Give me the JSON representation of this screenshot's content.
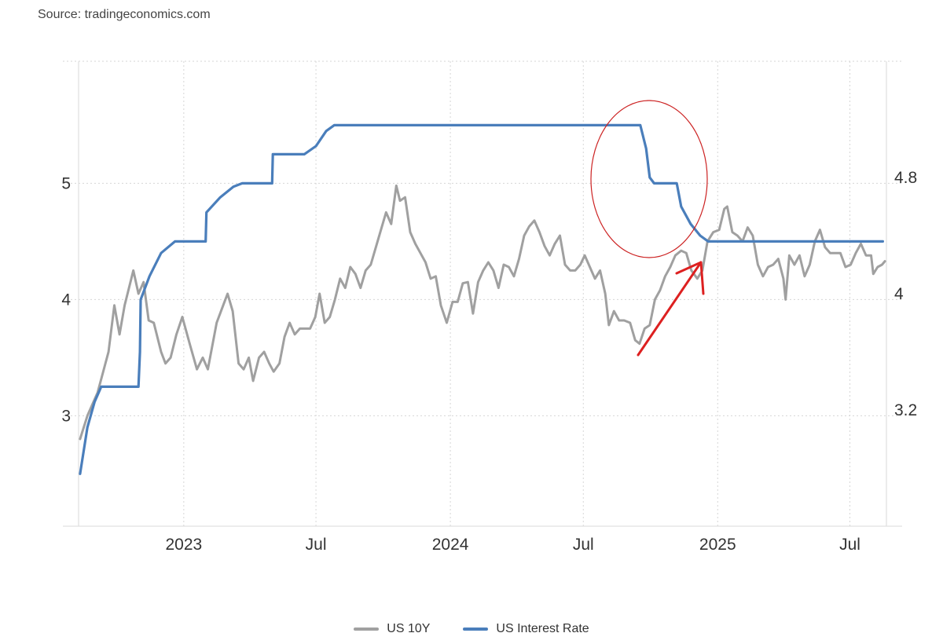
{
  "source": "Source: tradingeconomics.com",
  "chart_data": {
    "type": "line",
    "title": "",
    "x_range": [
      "2022-08-10",
      "2025-08-20"
    ],
    "x_ticks": [
      {
        "date": "2023-01-01",
        "label": "2023"
      },
      {
        "date": "2023-07-01",
        "label": "Jul"
      },
      {
        "date": "2024-01-01",
        "label": "2024"
      },
      {
        "date": "2024-07-01",
        "label": "Jul"
      },
      {
        "date": "2025-01-01",
        "label": "2025"
      },
      {
        "date": "2025-07-01",
        "label": "Jul"
      }
    ],
    "y_left": {
      "range": [
        2.05,
        6.05
      ],
      "ticks": [
        3,
        4,
        5
      ],
      "labels": [
        "3",
        "4",
        "5"
      ]
    },
    "y_right": {
      "range": [
        2.4,
        5.6
      ],
      "ticks": [
        3.2,
        4.0,
        4.8
      ],
      "labels": [
        "3.2",
        "4",
        "4.8"
      ]
    },
    "grid": true,
    "legend_position": "bottom",
    "series": [
      {
        "name": "US 10Y",
        "axis": "left",
        "color": "#a0a0a0",
        "points": [
          [
            "2022-08-12",
            2.8
          ],
          [
            "2022-08-22",
            3.0
          ],
          [
            "2022-09-05",
            3.2
          ],
          [
            "2022-09-20",
            3.55
          ],
          [
            "2022-09-28",
            3.95
          ],
          [
            "2022-10-05",
            3.7
          ],
          [
            "2022-10-12",
            3.95
          ],
          [
            "2022-10-24",
            4.25
          ],
          [
            "2022-10-31",
            4.05
          ],
          [
            "2022-11-07",
            4.15
          ],
          [
            "2022-11-14",
            3.82
          ],
          [
            "2022-11-21",
            3.8
          ],
          [
            "2022-12-01",
            3.55
          ],
          [
            "2022-12-07",
            3.45
          ],
          [
            "2022-12-14",
            3.5
          ],
          [
            "2022-12-22",
            3.7
          ],
          [
            "2022-12-30",
            3.85
          ],
          [
            "2023-01-10",
            3.6
          ],
          [
            "2023-01-19",
            3.4
          ],
          [
            "2023-01-27",
            3.5
          ],
          [
            "2023-02-03",
            3.4
          ],
          [
            "2023-02-15",
            3.8
          ],
          [
            "2023-02-24",
            3.95
          ],
          [
            "2023-03-02",
            4.05
          ],
          [
            "2023-03-09",
            3.9
          ],
          [
            "2023-03-17",
            3.45
          ],
          [
            "2023-03-24",
            3.4
          ],
          [
            "2023-03-31",
            3.5
          ],
          [
            "2023-04-06",
            3.3
          ],
          [
            "2023-04-14",
            3.5
          ],
          [
            "2023-04-21",
            3.55
          ],
          [
            "2023-04-28",
            3.45
          ],
          [
            "2023-05-04",
            3.38
          ],
          [
            "2023-05-12",
            3.45
          ],
          [
            "2023-05-19",
            3.68
          ],
          [
            "2023-05-26",
            3.8
          ],
          [
            "2023-06-02",
            3.7
          ],
          [
            "2023-06-09",
            3.75
          ],
          [
            "2023-06-16",
            3.75
          ],
          [
            "2023-06-23",
            3.75
          ],
          [
            "2023-06-30",
            3.85
          ],
          [
            "2023-07-06",
            4.05
          ],
          [
            "2023-07-13",
            3.8
          ],
          [
            "2023-07-20",
            3.85
          ],
          [
            "2023-07-27",
            4.0
          ],
          [
            "2023-08-03",
            4.18
          ],
          [
            "2023-08-10",
            4.1
          ],
          [
            "2023-08-17",
            4.28
          ],
          [
            "2023-08-24",
            4.22
          ],
          [
            "2023-08-31",
            4.1
          ],
          [
            "2023-09-07",
            4.25
          ],
          [
            "2023-09-14",
            4.3
          ],
          [
            "2023-09-21",
            4.45
          ],
          [
            "2023-09-28",
            4.6
          ],
          [
            "2023-10-05",
            4.75
          ],
          [
            "2023-10-12",
            4.65
          ],
          [
            "2023-10-19",
            4.98
          ],
          [
            "2023-10-24",
            4.85
          ],
          [
            "2023-10-31",
            4.88
          ],
          [
            "2023-11-07",
            4.58
          ],
          [
            "2023-11-14",
            4.48
          ],
          [
            "2023-11-21",
            4.4
          ],
          [
            "2023-11-28",
            4.32
          ],
          [
            "2023-12-05",
            4.18
          ],
          [
            "2023-12-12",
            4.2
          ],
          [
            "2023-12-19",
            3.95
          ],
          [
            "2023-12-27",
            3.8
          ],
          [
            "2024-01-04",
            3.98
          ],
          [
            "2024-01-11",
            3.98
          ],
          [
            "2024-01-18",
            4.14
          ],
          [
            "2024-01-25",
            4.15
          ],
          [
            "2024-02-01",
            3.88
          ],
          [
            "2024-02-08",
            4.15
          ],
          [
            "2024-02-15",
            4.25
          ],
          [
            "2024-02-22",
            4.32
          ],
          [
            "2024-02-29",
            4.25
          ],
          [
            "2024-03-07",
            4.1
          ],
          [
            "2024-03-14",
            4.3
          ],
          [
            "2024-03-21",
            4.28
          ],
          [
            "2024-03-28",
            4.2
          ],
          [
            "2024-04-04",
            4.35
          ],
          [
            "2024-04-11",
            4.55
          ],
          [
            "2024-04-18",
            4.63
          ],
          [
            "2024-04-25",
            4.68
          ],
          [
            "2024-05-02",
            4.58
          ],
          [
            "2024-05-09",
            4.46
          ],
          [
            "2024-05-16",
            4.38
          ],
          [
            "2024-05-23",
            4.48
          ],
          [
            "2024-05-30",
            4.55
          ],
          [
            "2024-06-06",
            4.3
          ],
          [
            "2024-06-13",
            4.25
          ],
          [
            "2024-06-20",
            4.25
          ],
          [
            "2024-06-27",
            4.3
          ],
          [
            "2024-07-03",
            4.38
          ],
          [
            "2024-07-10",
            4.28
          ],
          [
            "2024-07-17",
            4.18
          ],
          [
            "2024-07-24",
            4.25
          ],
          [
            "2024-07-31",
            4.05
          ],
          [
            "2024-08-05",
            3.78
          ],
          [
            "2024-08-12",
            3.9
          ],
          [
            "2024-08-19",
            3.82
          ],
          [
            "2024-08-26",
            3.82
          ],
          [
            "2024-09-03",
            3.8
          ],
          [
            "2024-09-10",
            3.65
          ],
          [
            "2024-09-16",
            3.62
          ],
          [
            "2024-09-23",
            3.75
          ],
          [
            "2024-09-30",
            3.78
          ],
          [
            "2024-10-07",
            4.0
          ],
          [
            "2024-10-14",
            4.08
          ],
          [
            "2024-10-21",
            4.2
          ],
          [
            "2024-10-28",
            4.28
          ],
          [
            "2024-11-04",
            4.38
          ],
          [
            "2024-11-12",
            4.42
          ],
          [
            "2024-11-19",
            4.4
          ],
          [
            "2024-11-26",
            4.25
          ],
          [
            "2024-12-04",
            4.18
          ],
          [
            "2024-12-11",
            4.25
          ],
          [
            "2024-12-18",
            4.5
          ],
          [
            "2024-12-26",
            4.58
          ],
          [
            "2025-01-03",
            4.6
          ],
          [
            "2025-01-10",
            4.78
          ],
          [
            "2025-01-14",
            4.8
          ],
          [
            "2025-01-21",
            4.58
          ],
          [
            "2025-01-28",
            4.55
          ],
          [
            "2025-02-04",
            4.5
          ],
          [
            "2025-02-11",
            4.62
          ],
          [
            "2025-02-18",
            4.55
          ],
          [
            "2025-02-25",
            4.3
          ],
          [
            "2025-03-04",
            4.2
          ],
          [
            "2025-03-11",
            4.28
          ],
          [
            "2025-03-18",
            4.3
          ],
          [
            "2025-03-25",
            4.35
          ],
          [
            "2025-04-01",
            4.18
          ],
          [
            "2025-04-04",
            4.0
          ],
          [
            "2025-04-09",
            4.38
          ],
          [
            "2025-04-16",
            4.3
          ],
          [
            "2025-04-23",
            4.38
          ],
          [
            "2025-04-30",
            4.2
          ],
          [
            "2025-05-07",
            4.3
          ],
          [
            "2025-05-14",
            4.5
          ],
          [
            "2025-05-21",
            4.6
          ],
          [
            "2025-05-28",
            4.45
          ],
          [
            "2025-06-04",
            4.4
          ],
          [
            "2025-06-11",
            4.4
          ],
          [
            "2025-06-18",
            4.4
          ],
          [
            "2025-06-25",
            4.28
          ],
          [
            "2025-07-02",
            4.3
          ],
          [
            "2025-07-09",
            4.4
          ],
          [
            "2025-07-16",
            4.48
          ],
          [
            "2025-07-23",
            4.38
          ],
          [
            "2025-07-30",
            4.38
          ],
          [
            "2025-08-02",
            4.22
          ],
          [
            "2025-08-08",
            4.28
          ],
          [
            "2025-08-14",
            4.3
          ],
          [
            "2025-08-18",
            4.33
          ]
        ]
      },
      {
        "name": "US Interest Rate",
        "axis": "left",
        "color": "#4a7ebb",
        "points": [
          [
            "2022-08-12",
            2.5
          ],
          [
            "2022-08-22",
            2.9
          ],
          [
            "2022-09-01",
            3.12
          ],
          [
            "2022-09-10",
            3.25
          ],
          [
            "2022-10-31",
            3.25
          ],
          [
            "2022-11-02",
            3.55
          ],
          [
            "2022-11-03",
            4.0
          ],
          [
            "2022-11-15",
            4.2
          ],
          [
            "2022-12-01",
            4.4
          ],
          [
            "2022-12-20",
            4.5
          ],
          [
            "2023-01-31",
            4.5
          ],
          [
            "2023-02-01",
            4.75
          ],
          [
            "2023-02-20",
            4.88
          ],
          [
            "2023-03-10",
            4.97
          ],
          [
            "2023-03-22",
            5.0
          ],
          [
            "2023-05-02",
            5.0
          ],
          [
            "2023-05-03",
            5.25
          ],
          [
            "2023-06-15",
            5.25
          ],
          [
            "2023-07-01",
            5.32
          ],
          [
            "2023-07-15",
            5.45
          ],
          [
            "2023-07-26",
            5.5
          ],
          [
            "2024-09-17",
            5.5
          ],
          [
            "2024-09-25",
            5.3
          ],
          [
            "2024-09-30",
            5.05
          ],
          [
            "2024-10-06",
            5.0
          ],
          [
            "2024-11-06",
            5.0
          ],
          [
            "2024-11-12",
            4.8
          ],
          [
            "2024-11-25",
            4.65
          ],
          [
            "2024-12-08",
            4.55
          ],
          [
            "2024-12-19",
            4.5
          ],
          [
            "2025-08-15",
            4.5
          ]
        ]
      }
    ],
    "annotations": [
      {
        "type": "ellipse",
        "color": "#cc2222",
        "note": "hand-drawn circle"
      },
      {
        "type": "arrow",
        "color": "#dd2020",
        "note": "hand-drawn arrow"
      }
    ]
  },
  "legend": [
    {
      "label": "US 10Y",
      "color": "#a0a0a0"
    },
    {
      "label": "US Interest Rate",
      "color": "#4a7ebb"
    }
  ]
}
